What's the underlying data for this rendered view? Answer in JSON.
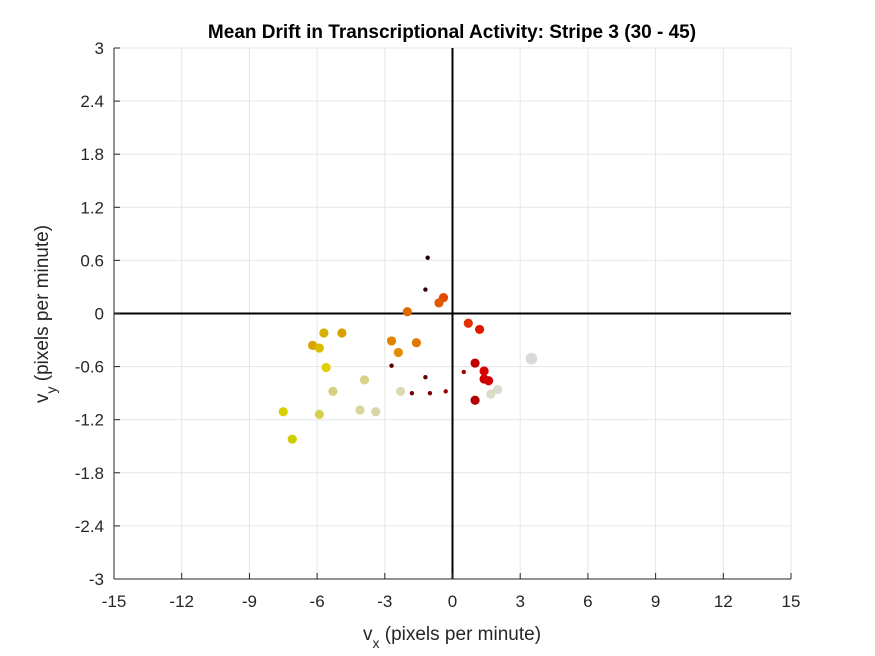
{
  "chart_data": {
    "type": "scatter",
    "title": "Mean Drift in Transcriptional Activity: Stripe 3 (30 - 45)",
    "xlabel": {
      "main": "v",
      "sub": "x",
      "rest": " (pixels per minute)"
    },
    "ylabel": {
      "main": "v",
      "sub": "y",
      "rest": " (pixels per minute)"
    },
    "xlim": [
      -15,
      15
    ],
    "ylim": [
      -3,
      3
    ],
    "xticks": [
      -15,
      -12,
      -9,
      -6,
      -3,
      0,
      3,
      6,
      9,
      12,
      15
    ],
    "yticks": [
      -3,
      -2.4,
      -1.8,
      -1.2,
      -0.6,
      0,
      0.6,
      1.2,
      1.8,
      2.4,
      3
    ],
    "xtick_labels": [
      "-15",
      "-12",
      "-9",
      "-6",
      "-3",
      "0",
      "3",
      "6",
      "9",
      "12",
      "15"
    ],
    "ytick_labels": [
      "-3",
      "-2.4",
      "-1.8",
      "-1.2",
      "-0.6",
      "0",
      "0.6",
      "1.2",
      "1.8",
      "2.4",
      "3"
    ],
    "grid": true,
    "points": [
      {
        "x": -1.1,
        "y": 0.63,
        "color": "#1a0000",
        "size": "small"
      },
      {
        "x": -1.2,
        "y": 0.27,
        "color": "#330000",
        "size": "small"
      },
      {
        "x": -2.8,
        "y": -0.3,
        "color": "#4d0000",
        "size": "small"
      },
      {
        "x": -2.7,
        "y": -0.59,
        "color": "#5a0000",
        "size": "small"
      },
      {
        "x": -1.2,
        "y": -0.72,
        "color": "#600000",
        "size": "small"
      },
      {
        "x": -1.8,
        "y": -0.9,
        "color": "#700000",
        "size": "small"
      },
      {
        "x": -1.0,
        "y": -0.9,
        "color": "#7a0000",
        "size": "small"
      },
      {
        "x": -0.3,
        "y": -0.88,
        "color": "#990000",
        "size": "small"
      },
      {
        "x": 0.5,
        "y": -0.66,
        "color": "#a30000",
        "size": "small"
      },
      {
        "x": 1.0,
        "y": -0.56,
        "color": "#c00000",
        "size": "medium"
      },
      {
        "x": 1.4,
        "y": -0.74,
        "color": "#cc0000",
        "size": "medium"
      },
      {
        "x": 1.6,
        "y": -0.76,
        "color": "#d40000",
        "size": "medium"
      },
      {
        "x": 1.4,
        "y": -0.65,
        "color": "#d80000",
        "size": "medium"
      },
      {
        "x": 1.0,
        "y": -0.98,
        "color": "#b00000",
        "size": "medium"
      },
      {
        "x": 1.2,
        "y": -0.18,
        "color": "#e01800",
        "size": "medium"
      },
      {
        "x": 0.7,
        "y": -0.11,
        "color": "#e63000",
        "size": "medium"
      },
      {
        "x": -0.4,
        "y": 0.18,
        "color": "#e04a00",
        "size": "medium"
      },
      {
        "x": -0.6,
        "y": 0.12,
        "color": "#e05a00",
        "size": "medium"
      },
      {
        "x": -2.0,
        "y": 0.02,
        "color": "#e06a00",
        "size": "medium"
      },
      {
        "x": -1.6,
        "y": -0.33,
        "color": "#e07800",
        "size": "medium"
      },
      {
        "x": -2.7,
        "y": -0.31,
        "color": "#e08400",
        "size": "medium"
      },
      {
        "x": -2.4,
        "y": -0.44,
        "color": "#e08f00",
        "size": "medium"
      },
      {
        "x": -4.9,
        "y": -0.22,
        "color": "#d6a000",
        "size": "medium"
      },
      {
        "x": -5.7,
        "y": -0.22,
        "color": "#d6b000",
        "size": "medium"
      },
      {
        "x": -6.2,
        "y": -0.36,
        "color": "#d8a400",
        "size": "medium"
      },
      {
        "x": -5.9,
        "y": -0.39,
        "color": "#dabb00",
        "size": "medium"
      },
      {
        "x": -5.6,
        "y": -0.61,
        "color": "#e0d000",
        "size": "medium"
      },
      {
        "x": -7.5,
        "y": -1.11,
        "color": "#d8d000",
        "size": "medium"
      },
      {
        "x": -7.1,
        "y": -1.42,
        "color": "#cfcf00",
        "size": "medium"
      },
      {
        "x": -5.9,
        "y": -1.14,
        "color": "#d6d050",
        "size": "medium"
      },
      {
        "x": -5.3,
        "y": -0.88,
        "color": "#d8d080",
        "size": "medium"
      },
      {
        "x": -3.9,
        "y": -0.75,
        "color": "#d8d28a",
        "size": "medium"
      },
      {
        "x": -4.1,
        "y": -1.09,
        "color": "#d8d49a",
        "size": "medium"
      },
      {
        "x": -3.4,
        "y": -1.11,
        "color": "#d8d6a8",
        "size": "medium"
      },
      {
        "x": -2.3,
        "y": -0.88,
        "color": "#dcdab4",
        "size": "medium"
      },
      {
        "x": 1.7,
        "y": -0.91,
        "color": "#dcdcc4",
        "size": "medium"
      },
      {
        "x": 2.0,
        "y": -0.86,
        "color": "#dcdccc",
        "size": "medium"
      },
      {
        "x": 3.5,
        "y": -0.51,
        "color": "#dadada",
        "size": "large"
      }
    ]
  }
}
